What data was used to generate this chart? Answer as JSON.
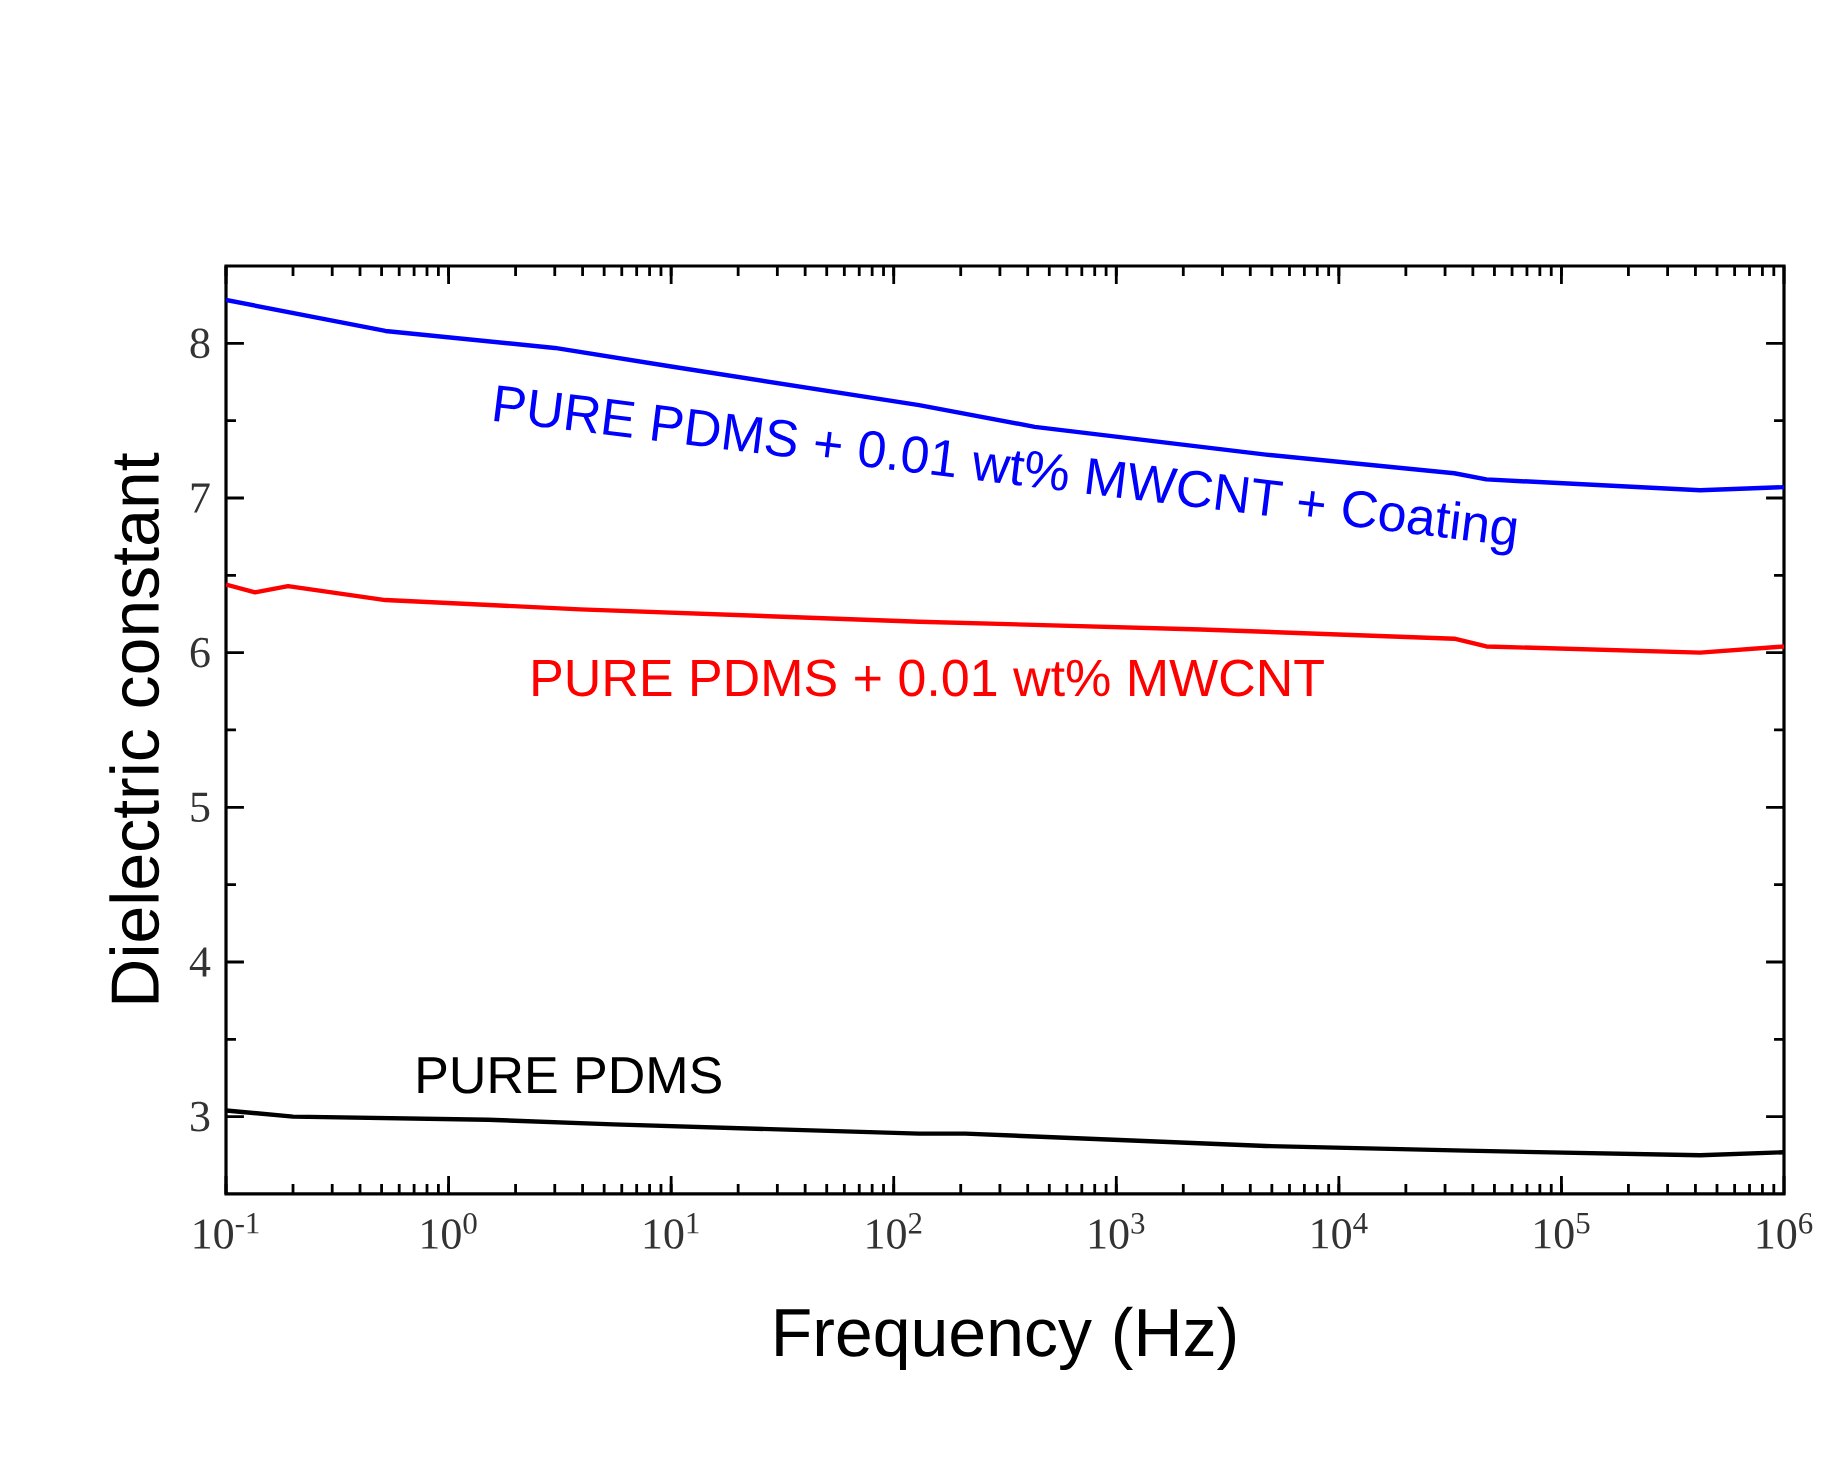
{
  "chart_data": {
    "type": "line",
    "xlabel": "Frequency (Hz)",
    "ylabel": "Dielectric constant",
    "log": "x",
    "xlim": [
      0.1,
      1000000
    ],
    "ylim": [
      2.5,
      8.5
    ],
    "xticks": [
      {
        "value": 0.1,
        "label": "10$^{-1}$"
      },
      {
        "value": 1,
        "label": "10$^{0}$"
      },
      {
        "value": 10,
        "label": "10$^{1}$"
      },
      {
        "value": 100,
        "label": "10$^{2}$"
      },
      {
        "value": 1000,
        "label": "10$^{3}$"
      },
      {
        "value": 10000,
        "label": "10$^{4}$"
      },
      {
        "value": 100000,
        "label": "10$^{5}$"
      },
      {
        "value": 1000000,
        "label": "10$^{6}$"
      }
    ],
    "yticks": [
      3,
      4,
      5,
      6,
      7,
      8
    ],
    "series": [
      {
        "name": "PURE PDMS + 0.01 wt% MWCNT + Coating",
        "color": "#0000ff",
        "x": [
          0.1,
          0.52,
          3,
          10,
          130,
          430,
          4700,
          33000,
          46000,
          420000,
          1000000
        ],
        "values": [
          8.28,
          8.08,
          7.97,
          7.85,
          7.6,
          7.46,
          7.28,
          7.16,
          7.12,
          7.05,
          7.07
        ]
      },
      {
        "name": "PURE PDMS + 0.01 wt% MWCNT",
        "color": "#ff0000",
        "x": [
          0.1,
          0.135,
          0.19,
          0.52,
          3.9,
          130,
          2400,
          33000,
          46000,
          420000,
          1000000
        ],
        "values": [
          6.44,
          6.39,
          6.43,
          6.34,
          6.28,
          6.2,
          6.15,
          6.09,
          6.04,
          6.0,
          6.04
        ]
      },
      {
        "name": "PURE PDMS",
        "color": "#000000",
        "x": [
          0.1,
          0.2,
          1.5,
          5.5,
          130,
          210,
          4700,
          37000,
          420000,
          1000000
        ],
        "values": [
          3.04,
          3.0,
          2.98,
          2.95,
          2.89,
          2.89,
          2.81,
          2.78,
          2.75,
          2.77
        ]
      }
    ]
  }
}
